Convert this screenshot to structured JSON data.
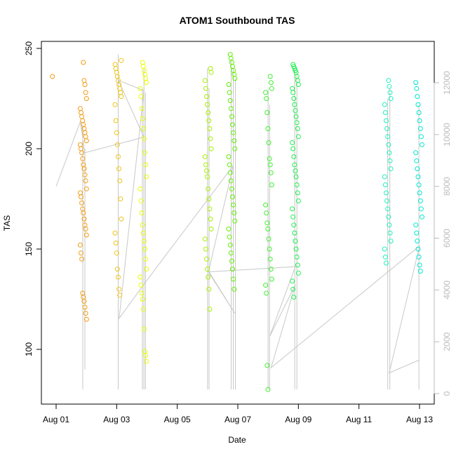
{
  "chart_data": {
    "type": "scatter",
    "title": "ATOM1 Southbound TAS",
    "xlabel": "Date",
    "ylabel": "TAS",
    "x_domain_days": [
      0,
      12
    ],
    "ylim": [
      80,
      250
    ],
    "y2lim": [
      0,
      13000
    ],
    "x_ticks": [
      {
        "day": 0,
        "label": "Aug 01"
      },
      {
        "day": 2,
        "label": "Aug 03"
      },
      {
        "day": 4,
        "label": "Aug 05"
      },
      {
        "day": 6,
        "label": "Aug 07"
      },
      {
        "day": 8,
        "label": "Aug 09"
      },
      {
        "day": 10,
        "label": "Aug 11"
      },
      {
        "day": 12,
        "label": "Aug 13"
      }
    ],
    "y_ticks": [
      100,
      150,
      200,
      250
    ],
    "y2_ticks": [
      0,
      2000,
      4000,
      6000,
      8000,
      10000,
      12000
    ],
    "grid": false,
    "legend": "none",
    "colors": {
      "points_palette": [
        "#F39C12",
        "#F0C419",
        "#E8FF00",
        "#A8F000",
        "#60F000",
        "#20F050",
        "#20F0C0",
        "#00E8D0"
      ],
      "altitude_line": "#c8c8c8",
      "axis": "#000000",
      "secondary_axis": "#bbbbbb"
    },
    "clusters": [
      {
        "day": -0.02,
        "values": [
          236
        ],
        "color": "#F39C12"
      },
      {
        "day": 0.9,
        "values": [
          243,
          234,
          232,
          228,
          225,
          220,
          218,
          216,
          214,
          212,
          210,
          208,
          206,
          204,
          202,
          200,
          198,
          195,
          192,
          190,
          187,
          184,
          180,
          178,
          176,
          173,
          170,
          168,
          165,
          162,
          160,
          157,
          152,
          148,
          145,
          128,
          126,
          124,
          121,
          118,
          115
        ],
        "color": "#F39C12"
      },
      {
        "day": 2.05,
        "values": [
          244,
          242,
          240,
          238,
          236,
          234,
          232,
          230,
          228,
          226,
          222,
          214,
          208,
          202,
          196,
          190,
          184,
          175,
          165,
          158,
          153,
          148,
          140,
          136,
          130,
          127
        ],
        "color": "#F0C419"
      },
      {
        "day": 2.88,
        "values": [
          243,
          241,
          239,
          237,
          235,
          233,
          230,
          226,
          220,
          215,
          210,
          205,
          198,
          192,
          186,
          180,
          174,
          168,
          162,
          158,
          154,
          150,
          145,
          140,
          136,
          132,
          128,
          125,
          120,
          110,
          99,
          97,
          94
        ],
        "color": "#E8FF00"
      },
      {
        "day": 5.02,
        "values": [
          240,
          238,
          234,
          230,
          226,
          222,
          218,
          214,
          210,
          205,
          200,
          196,
          192,
          189,
          186,
          180,
          175,
          170,
          165,
          160,
          155,
          150,
          145,
          140,
          136,
          130,
          120
        ],
        "color": "#A8F000"
      },
      {
        "day": 5.8,
        "values": [
          247,
          245,
          243,
          241,
          239,
          237,
          235,
          232,
          228,
          224,
          220,
          216,
          212,
          208,
          204,
          200,
          196,
          192,
          188,
          184,
          180,
          176,
          172,
          168,
          164,
          160,
          156,
          152,
          148,
          144,
          140,
          135,
          130
        ],
        "color": "#60F000"
      },
      {
        "day": 7.02,
        "values": [
          236,
          233,
          230,
          228,
          225,
          218,
          210,
          203,
          195,
          192,
          188,
          182,
          172,
          168,
          163,
          160,
          155,
          150,
          145,
          140,
          135,
          132,
          128,
          92,
          80
        ],
        "color": "#40F030"
      },
      {
        "day": 7.9,
        "values": [
          242,
          241,
          240,
          239,
          238,
          236,
          234,
          232,
          230,
          228,
          225,
          222,
          219,
          216,
          213,
          210,
          206,
          203,
          200,
          196,
          192,
          189,
          186,
          182,
          178,
          174,
          170,
          166,
          162,
          158,
          154,
          150,
          146,
          142,
          138,
          134,
          130,
          126
        ],
        "color": "#20F050"
      },
      {
        "day": 10.95,
        "values": [
          234,
          231,
          228,
          225,
          222,
          218,
          214,
          210,
          206,
          202,
          198,
          194,
          190,
          186,
          182,
          178,
          174,
          170,
          166,
          162,
          158,
          154,
          150,
          146,
          143
        ],
        "color": "#20F0C0"
      },
      {
        "day": 11.98,
        "values": [
          233,
          230,
          226,
          222,
          218,
          214,
          210,
          206,
          202,
          198,
          194,
          190,
          186,
          182,
          178,
          174,
          170,
          166,
          162,
          158,
          154,
          150,
          146,
          142,
          139
        ],
        "color": "#00E8D0"
      }
    ],
    "altitude_path": [
      {
        "day": 0.0,
        "alt": 8000
      },
      {
        "day": 0.8,
        "alt": 10500
      },
      {
        "day": 0.95,
        "alt": 9300
      },
      {
        "day": 2.9,
        "alt": 9900
      },
      {
        "day": 2.05,
        "alt": 12100
      },
      {
        "day": 2.9,
        "alt": 11700
      },
      {
        "day": 2.08,
        "alt": 2900
      },
      {
        "day": 2.95,
        "alt": 4300
      },
      {
        "day": 5.85,
        "alt": 8800
      },
      {
        "day": 5.03,
        "alt": 4700
      },
      {
        "day": 5.9,
        "alt": 3100
      },
      {
        "day": 5.05,
        "alt": 4700
      },
      {
        "day": 7.9,
        "alt": 4900
      },
      {
        "day": 7.05,
        "alt": 2200
      },
      {
        "day": 7.9,
        "alt": 4200
      },
      {
        "day": 7.1,
        "alt": 1000
      },
      {
        "day": 12.0,
        "alt": 5700
      },
      {
        "day": 11.0,
        "alt": 800
      },
      {
        "day": 12.0,
        "alt": 1300
      }
    ],
    "altitude_spikes": [
      {
        "day": 0.88,
        "bottom": 80,
        "top": 212
      },
      {
        "day": 0.95,
        "bottom": 90,
        "top": 200
      },
      {
        "day": 2.05,
        "bottom": 80,
        "top": 247
      },
      {
        "day": 2.85,
        "bottom": 80,
        "top": 230
      },
      {
        "day": 2.9,
        "bottom": 80,
        "top": 240
      },
      {
        "day": 2.95,
        "bottom": 80,
        "top": 228
      },
      {
        "day": 5.0,
        "bottom": 80,
        "top": 240
      },
      {
        "day": 5.05,
        "bottom": 80,
        "top": 230
      },
      {
        "day": 5.78,
        "bottom": 80,
        "top": 245
      },
      {
        "day": 5.85,
        "bottom": 80,
        "top": 240
      },
      {
        "day": 5.92,
        "bottom": 80,
        "top": 235
      },
      {
        "day": 7.0,
        "bottom": 80,
        "top": 230
      },
      {
        "day": 7.05,
        "bottom": 80,
        "top": 222
      },
      {
        "day": 7.88,
        "bottom": 80,
        "top": 240
      },
      {
        "day": 7.95,
        "bottom": 80,
        "top": 238
      },
      {
        "day": 10.95,
        "bottom": 80,
        "top": 225
      },
      {
        "day": 11.02,
        "bottom": 80,
        "top": 230
      },
      {
        "day": 11.98,
        "bottom": 80,
        "top": 222
      }
    ]
  }
}
